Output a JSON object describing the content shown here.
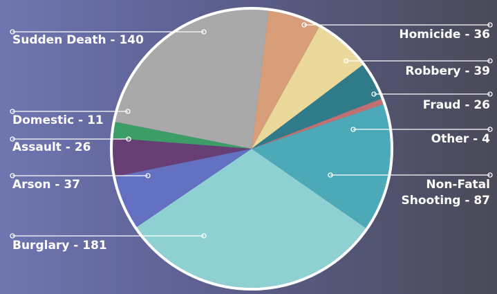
{
  "chart_data": {
    "type": "pie",
    "title": "",
    "slices": [
      {
        "category": "Homicide",
        "value": 36,
        "color": "#d89e7a",
        "label_lines": [
          "Homicide - 36"
        ]
      },
      {
        "category": "Robbery",
        "value": 39,
        "color": "#ead99a",
        "label_lines": [
          "Robbery - 39"
        ]
      },
      {
        "category": "Fraud",
        "value": 26,
        "color": "#2f7b8a",
        "label_lines": [
          "Fraud - 26"
        ]
      },
      {
        "category": "Other",
        "value": 4,
        "color": "#c07070",
        "label_lines": [
          "Other - 4"
        ]
      },
      {
        "category": "Non-Fatal Shooting",
        "value": 87,
        "color": "#4ba9b8",
        "label_lines": [
          "Non-Fatal",
          "Shooting - 87"
        ]
      },
      {
        "category": "Burglary",
        "value": 181,
        "color": "#8fd0d2",
        "label_lines": [
          "Burglary - 181"
        ]
      },
      {
        "category": "Arson",
        "value": 37,
        "color": "#6470c2",
        "label_lines": [
          "Arson - 37"
        ]
      },
      {
        "category": "Assault",
        "value": 26,
        "color": "#673f75",
        "label_lines": [
          "Assault - 26"
        ]
      },
      {
        "category": "Domestic",
        "value": 11,
        "color": "#3c9e66",
        "label_lines": [
          "Domestic - 11"
        ]
      },
      {
        "category": "Sudden Death",
        "value": 140,
        "color": "#a9a9a9",
        "label_lines": [
          "Sudden Death - 140"
        ]
      }
    ]
  }
}
